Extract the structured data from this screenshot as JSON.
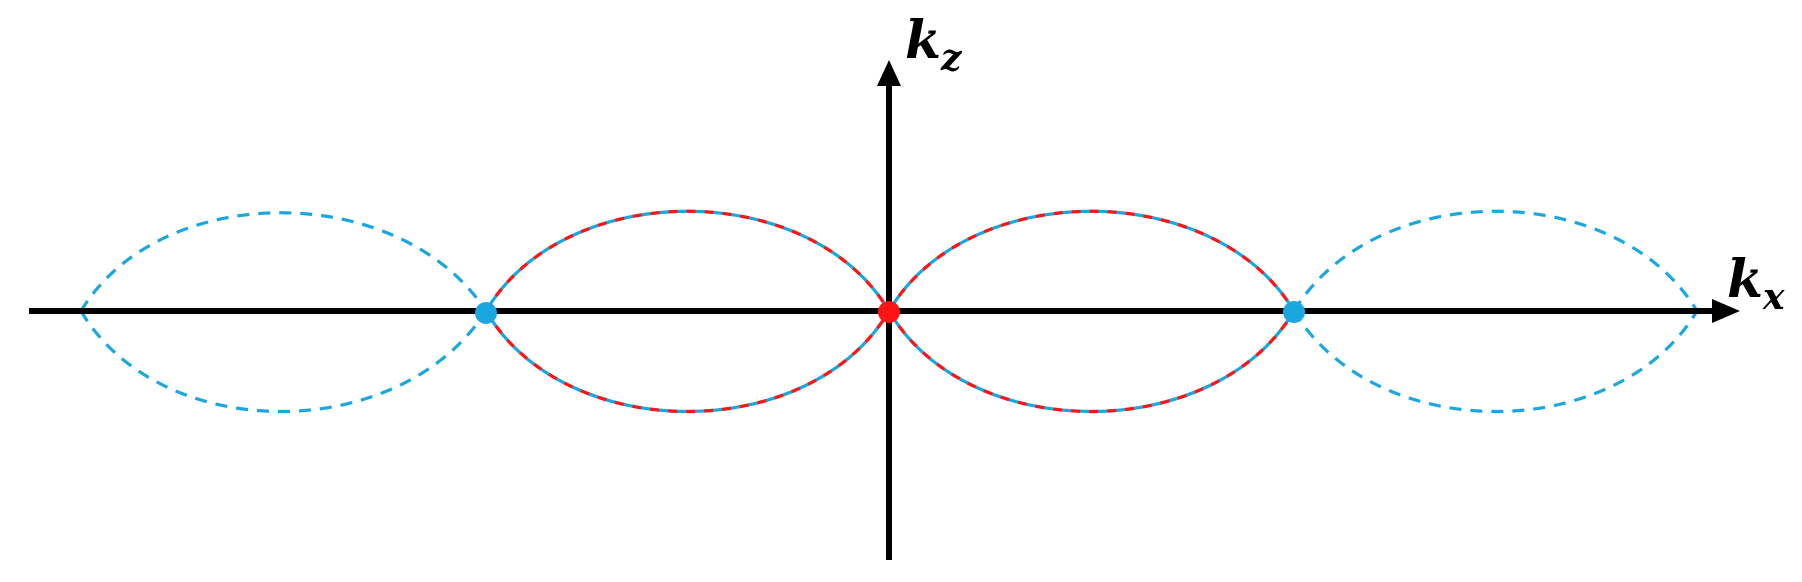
{
  "axes": {
    "x_label_main": "k",
    "x_label_sub": "x",
    "z_label_main": "k",
    "z_label_sub": "z"
  },
  "colors": {
    "axis": "#000000",
    "cyan": "#1aa7e0",
    "red": "#ff1414"
  }
}
